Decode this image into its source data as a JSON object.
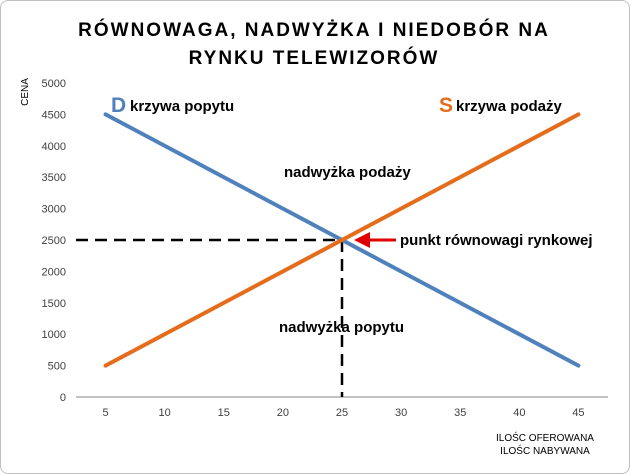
{
  "chart_data": {
    "type": "line",
    "title_line1": "RÓWNOWAGA, NADWYŻKA I NIEDOBÓR NA",
    "title_line2": "RYNKU TELEWIZORÓW",
    "ylabel": "CENA",
    "xlabel_line1": "ILOŚC OFEROWANA",
    "xlabel_line2": "ILOŚC NABYWANA",
    "x_ticks": [
      5,
      10,
      15,
      20,
      25,
      30,
      35,
      40,
      45
    ],
    "y_ticks": [
      0,
      500,
      1000,
      1500,
      2000,
      2500,
      3000,
      3500,
      4000,
      4500,
      5000
    ],
    "xlim": [
      2.5,
      47.5
    ],
    "ylim": [
      0,
      5000
    ],
    "grid": false,
    "series": [
      {
        "letter": "D",
        "label": "krzywa popytu",
        "color": "#4f81bd",
        "points": [
          [
            5,
            4500
          ],
          [
            45,
            500
          ]
        ]
      },
      {
        "letter": "S",
        "label": "krzywa podaży",
        "color": "#e46c1a",
        "points": [
          [
            5,
            500
          ],
          [
            45,
            4500
          ]
        ]
      }
    ],
    "equilibrium": {
      "x": 25,
      "y": 2500,
      "label": "punkt równowagi rynkowej",
      "arrow_color": "#e00000"
    },
    "annotations": {
      "surplus": "nadwyżka podaży",
      "shortage": "nadwyżka popytu"
    }
  }
}
